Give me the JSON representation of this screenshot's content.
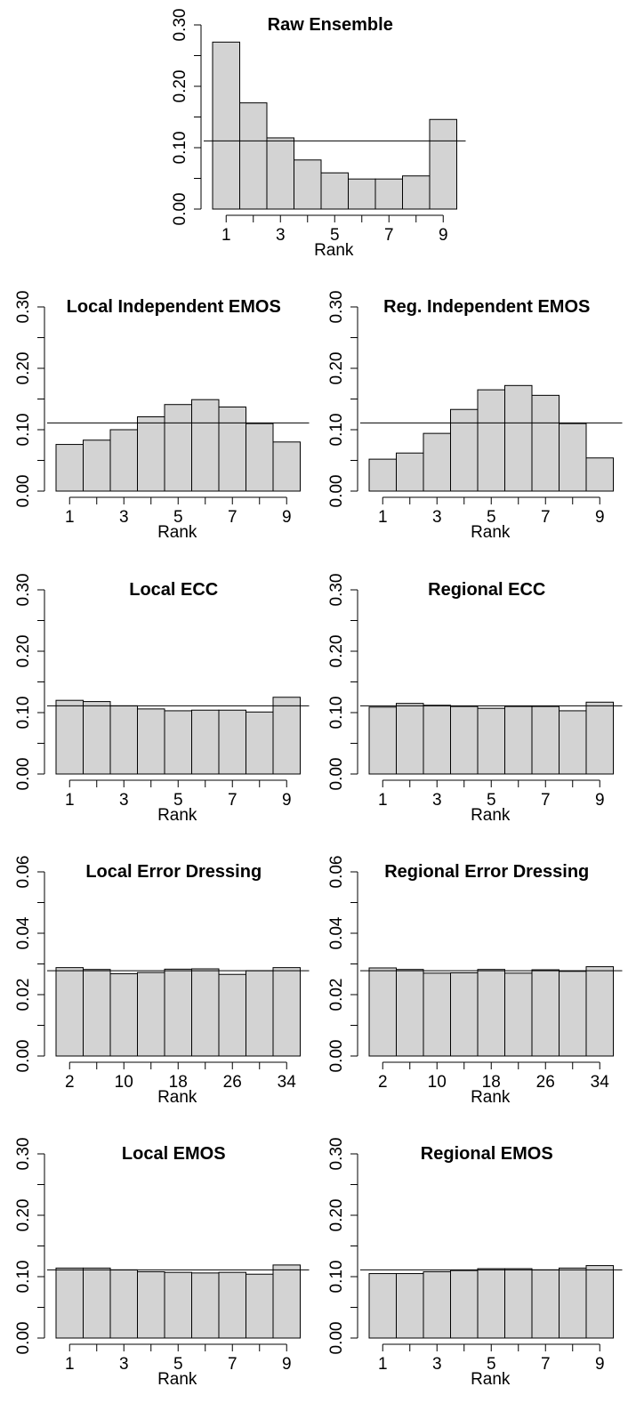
{
  "chart_data": [
    {
      "type": "bar",
      "title": "Raw Ensemble",
      "xlabel": "Rank",
      "categories": [
        1,
        2,
        3,
        4,
        5,
        6,
        7,
        8,
        9
      ],
      "values": [
        0.272,
        0.173,
        0.116,
        0.08,
        0.059,
        0.049,
        0.049,
        0.054,
        0.146
      ],
      "reference_line": 0.111,
      "ylim": [
        0,
        0.3
      ],
      "yticks": [
        "0.00",
        "0.10",
        "0.20",
        "0.30"
      ],
      "xticks": [
        "1",
        "3",
        "5",
        "7",
        "9"
      ]
    },
    {
      "type": "bar",
      "title": "Local Independent EMOS",
      "xlabel": "Rank",
      "categories": [
        1,
        2,
        3,
        4,
        5,
        6,
        7,
        8,
        9
      ],
      "values": [
        0.076,
        0.083,
        0.1,
        0.121,
        0.141,
        0.149,
        0.137,
        0.11,
        0.08
      ],
      "reference_line": 0.111,
      "ylim": [
        0,
        0.3
      ],
      "yticks": [
        "0.00",
        "0.10",
        "0.20",
        "0.30"
      ],
      "xticks": [
        "1",
        "3",
        "5",
        "7",
        "9"
      ]
    },
    {
      "type": "bar",
      "title": "Reg. Independent EMOS",
      "xlabel": "Rank",
      "categories": [
        1,
        2,
        3,
        4,
        5,
        6,
        7,
        8,
        9
      ],
      "values": [
        0.052,
        0.062,
        0.094,
        0.133,
        0.165,
        0.172,
        0.156,
        0.11,
        0.054
      ],
      "reference_line": 0.111,
      "ylim": [
        0,
        0.3
      ],
      "yticks": [
        "0.00",
        "0.10",
        "0.20",
        "0.30"
      ],
      "xticks": [
        "1",
        "3",
        "5",
        "7",
        "9"
      ]
    },
    {
      "type": "bar",
      "title": "Local ECC",
      "xlabel": "Rank",
      "categories": [
        1,
        2,
        3,
        4,
        5,
        6,
        7,
        8,
        9
      ],
      "values": [
        0.12,
        0.118,
        0.111,
        0.106,
        0.103,
        0.104,
        0.104,
        0.101,
        0.125
      ],
      "reference_line": 0.111,
      "ylim": [
        0,
        0.3
      ],
      "yticks": [
        "0.00",
        "0.10",
        "0.20",
        "0.30"
      ],
      "xticks": [
        "1",
        "3",
        "5",
        "7",
        "9"
      ]
    },
    {
      "type": "bar",
      "title": "Regional ECC",
      "xlabel": "Rank",
      "categories": [
        1,
        2,
        3,
        4,
        5,
        6,
        7,
        8,
        9
      ],
      "values": [
        0.109,
        0.115,
        0.112,
        0.11,
        0.107,
        0.11,
        0.11,
        0.103,
        0.117
      ],
      "reference_line": 0.111,
      "ylim": [
        0,
        0.3
      ],
      "yticks": [
        "0.00",
        "0.10",
        "0.20",
        "0.30"
      ],
      "xticks": [
        "1",
        "3",
        "5",
        "7",
        "9"
      ]
    },
    {
      "type": "bar",
      "title": "Local Error Dressing",
      "xlabel": "Rank",
      "bin_width": 4,
      "x_range": [
        0,
        36
      ],
      "bins": [
        [
          0,
          4
        ],
        [
          4,
          8
        ],
        [
          8,
          12
        ],
        [
          12,
          16
        ],
        [
          16,
          20
        ],
        [
          20,
          24
        ],
        [
          24,
          28
        ],
        [
          28,
          32
        ],
        [
          32,
          36
        ]
      ],
      "values": [
        0.0288,
        0.0282,
        0.0268,
        0.0272,
        0.0283,
        0.0284,
        0.0266,
        0.0278,
        0.0288
      ],
      "reference_line": 0.0278,
      "ylim": [
        0,
        0.06
      ],
      "yticks": [
        "0.00",
        "0.02",
        "0.04",
        "0.06"
      ],
      "xticks": [
        "2",
        "10",
        "18",
        "26",
        "34"
      ]
    },
    {
      "type": "bar",
      "title": "Regional Error Dressing",
      "xlabel": "Rank",
      "bin_width": 4,
      "x_range": [
        0,
        36
      ],
      "bins": [
        [
          0,
          4
        ],
        [
          4,
          8
        ],
        [
          8,
          12
        ],
        [
          12,
          16
        ],
        [
          16,
          20
        ],
        [
          20,
          24
        ],
        [
          24,
          28
        ],
        [
          28,
          32
        ],
        [
          32,
          36
        ]
      ],
      "values": [
        0.0287,
        0.0282,
        0.027,
        0.0271,
        0.0282,
        0.027,
        0.0281,
        0.0276,
        0.0291
      ],
      "reference_line": 0.0278,
      "ylim": [
        0,
        0.06
      ],
      "yticks": [
        "0.00",
        "0.02",
        "0.04",
        "0.06"
      ],
      "xticks": [
        "2",
        "10",
        "18",
        "26",
        "34"
      ]
    },
    {
      "type": "bar",
      "title": "Local EMOS",
      "xlabel": "Rank",
      "categories": [
        1,
        2,
        3,
        4,
        5,
        6,
        7,
        8,
        9
      ],
      "values": [
        0.114,
        0.114,
        0.111,
        0.108,
        0.107,
        0.106,
        0.107,
        0.104,
        0.119
      ],
      "reference_line": 0.111,
      "ylim": [
        0,
        0.3
      ],
      "yticks": [
        "0.00",
        "0.10",
        "0.20",
        "0.30"
      ],
      "xticks": [
        "1",
        "3",
        "5",
        "7",
        "9"
      ]
    },
    {
      "type": "bar",
      "title": "Regional EMOS",
      "xlabel": "Rank",
      "categories": [
        1,
        2,
        3,
        4,
        5,
        6,
        7,
        8,
        9
      ],
      "values": [
        0.105,
        0.105,
        0.108,
        0.11,
        0.113,
        0.113,
        0.111,
        0.114,
        0.118
      ],
      "reference_line": 0.111,
      "ylim": [
        0,
        0.3
      ],
      "yticks": [
        "0.00",
        "0.10",
        "0.20",
        "0.30"
      ],
      "xticks": [
        "1",
        "3",
        "5",
        "7",
        "9"
      ]
    }
  ],
  "colors": {
    "bar_fill": "#d3d3d3",
    "bar_stroke": "#000000",
    "reference_line": "#000000"
  }
}
